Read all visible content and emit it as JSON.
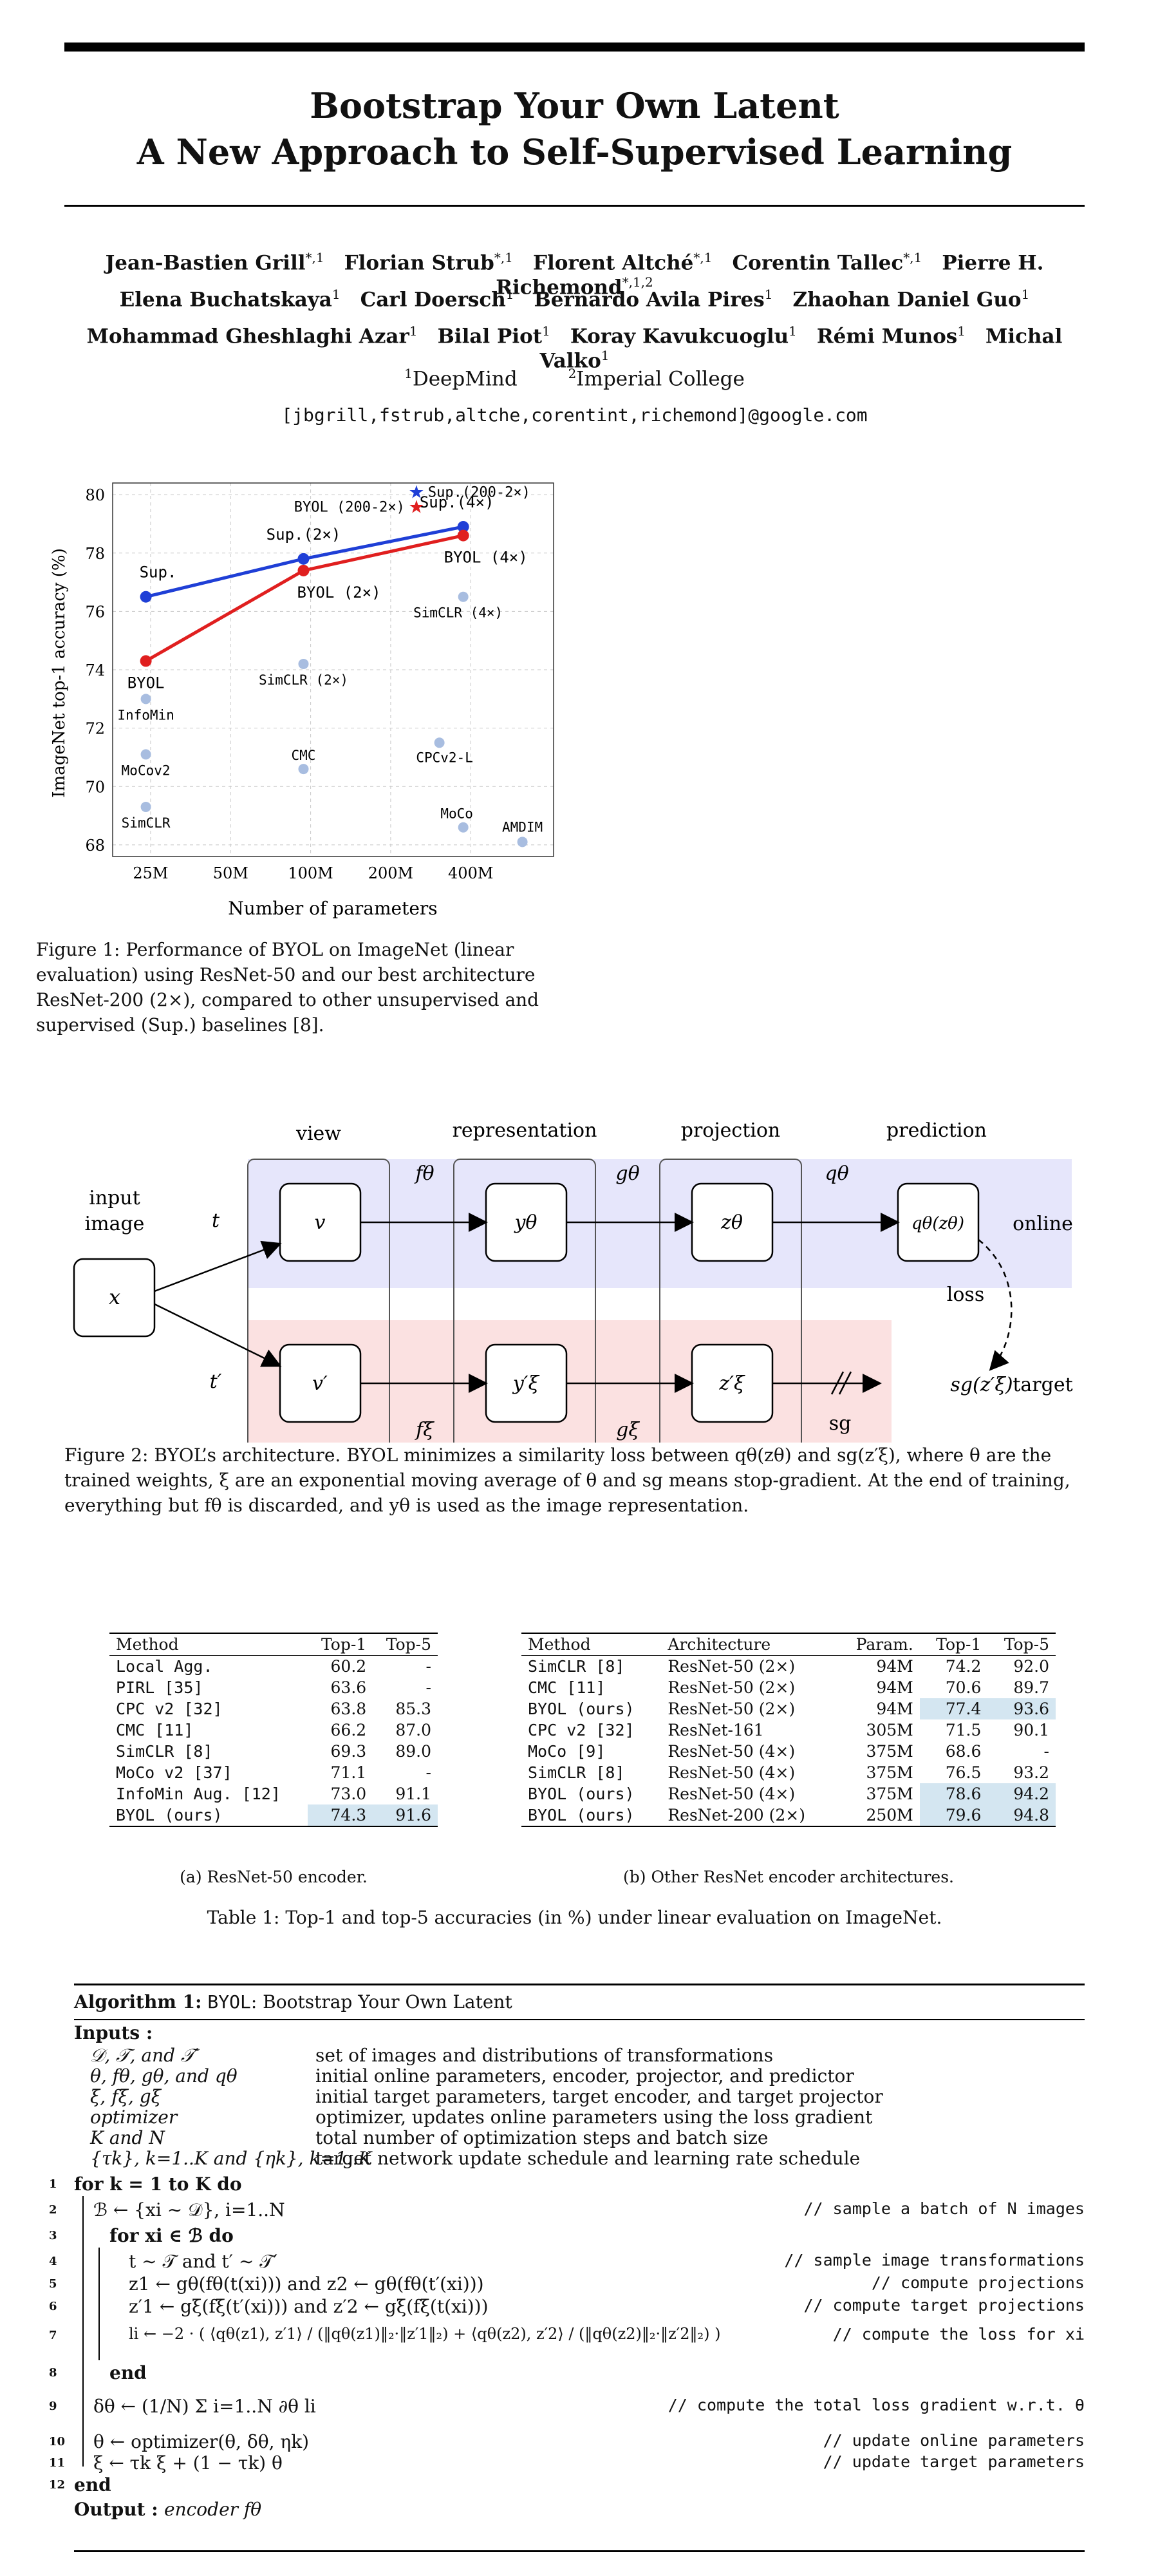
{
  "paper": {
    "title_line1": "Bootstrap Your Own Latent",
    "title_line2": "A New Approach to Self-Supervised Learning",
    "authors_row1": [
      {
        "name": "Jean-Bastien Grill",
        "sup": "*,1"
      },
      {
        "name": "Florian Strub",
        "sup": "*,1"
      },
      {
        "name": "Florent Altché",
        "sup": "*,1"
      },
      {
        "name": "Corentin Tallec",
        "sup": "*,1"
      },
      {
        "name": "Pierre H. Richemond",
        "sup": "*,1,2"
      }
    ],
    "authors_row2": [
      {
        "name": "Elena Buchatskaya",
        "sup": "1"
      },
      {
        "name": "Carl Doersch",
        "sup": "1"
      },
      {
        "name": "Bernardo Avila Pires",
        "sup": "1"
      },
      {
        "name": "Zhaohan Daniel Guo",
        "sup": "1"
      }
    ],
    "authors_row3": [
      {
        "name": "Mohammad Gheshlaghi Azar",
        "sup": "1"
      },
      {
        "name": "Bilal Piot",
        "sup": "1"
      },
      {
        "name": "Koray Kavukcuoglu",
        "sup": "1"
      },
      {
        "name": "Rémi Munos",
        "sup": "1"
      },
      {
        "name": "Michal Valko",
        "sup": "1"
      }
    ],
    "affiliations": [
      {
        "sup": "1",
        "name": "DeepMind"
      },
      {
        "sup": "2",
        "name": "Imperial College"
      }
    ],
    "email": "[jbgrill,fstrub,altche,corentint,richemond]@google.com"
  },
  "chart_data": {
    "type": "scatter",
    "xlabel": "Number of parameters",
    "ylabel": "ImageNet top-1 accuracy (%)",
    "x_scale": "log",
    "xticks": [
      "25M",
      "50M",
      "100M",
      "200M",
      "400M"
    ],
    "xtick_values": [
      25,
      50,
      100,
      200,
      400
    ],
    "yticks": [
      68,
      70,
      72,
      74,
      76,
      78,
      80
    ],
    "ylim": [
      67.6,
      80.4
    ],
    "xlim": [
      18,
      820
    ],
    "grid": true,
    "series": [
      {
        "name": "Sup.",
        "color": "#1f3fd6",
        "labels": [
          "Sup.",
          "Sup.(2×)",
          "Sup.(4×)"
        ],
        "x": [
          24,
          94,
          375
        ],
        "y": [
          76.5,
          77.8,
          78.9
        ]
      },
      {
        "name": "BYOL",
        "color": "#e01f1f",
        "labels": [
          "BYOL",
          "BYOL (2×)",
          "BYOL (4×)"
        ],
        "x": [
          24,
          94,
          375
        ],
        "y": [
          74.3,
          77.4,
          78.6
        ]
      }
    ],
    "stars": [
      {
        "label": "Sup.(200-2×)",
        "x": 250,
        "y": 80.1,
        "color": "#1f3fd6"
      },
      {
        "label": "BYOL (200-2×)",
        "x": 250,
        "y": 79.6,
        "color": "#e01f1f"
      }
    ],
    "others": {
      "color": "#a8bde0",
      "points": [
        {
          "label": "InfoMin",
          "x": 24,
          "y": 73.0
        },
        {
          "label": "MoCov2",
          "x": 24,
          "y": 71.1
        },
        {
          "label": "SimCLR",
          "x": 24,
          "y": 69.3
        },
        {
          "label": "SimCLR (2×)",
          "x": 94,
          "y": 74.2
        },
        {
          "label": "CMC",
          "x": 94,
          "y": 70.6
        },
        {
          "label": "SimCLR (4×)",
          "x": 375,
          "y": 76.5
        },
        {
          "label": "CPCv2-L",
          "x": 305,
          "y": 71.5
        },
        {
          "label": "MoCo",
          "x": 375,
          "y": 68.6
        },
        {
          "label": "AMDIM",
          "x": 626,
          "y": 68.1
        }
      ]
    }
  },
  "figure1": {
    "caption": "Figure 1: Performance of BYOL on ImageNet (linear evaluation) using ResNet-50 and our best architecture ResNet-200 (2×), compared to other unsupervised and supervised (Sup.) baselines [8]."
  },
  "figure2": {
    "labels": {
      "input_image": "input image",
      "view": "view",
      "representation": "representation",
      "projection": "projection",
      "prediction": "prediction",
      "online": "online",
      "target": "target",
      "loss": "loss",
      "sg": "sg",
      "x": "x",
      "t": "t",
      "t_prime": "t′",
      "v": "v",
      "v_prime": "v′",
      "y_theta": "yθ",
      "y_xi": "y′ξ",
      "z_theta": "zθ",
      "z_xi": "z′ξ",
      "q_theta_z": "qθ(zθ)",
      "sg_z": "sg(z′ξ)",
      "f_theta": "fθ",
      "g_theta": "gθ",
      "q_theta": "qθ",
      "f_xi": "fξ",
      "g_xi": "gξ"
    },
    "caption": "Figure 2: BYOL’s architecture. BYOL minimizes a similarity loss between qθ(zθ) and sg(z′ξ), where θ are the trained weights, ξ are an exponential moving average of θ and sg means stop-gradient. At the end of training, everything but fθ is discarded, and yθ is used as the image representation."
  },
  "table1": {
    "a": {
      "headers": [
        "Method",
        "Top-1",
        "Top-5"
      ],
      "rows": [
        [
          "Local Agg.",
          "60.2",
          "-"
        ],
        [
          "PIRL [35]",
          "63.6",
          "-"
        ],
        [
          "CPC v2 [32]",
          "63.8",
          "85.3"
        ],
        [
          "CMC [11]",
          "66.2",
          "87.0"
        ],
        [
          "SimCLR [8]",
          "69.3",
          "89.0"
        ],
        [
          "MoCo v2 [37]",
          "71.1",
          "-"
        ],
        [
          "InfoMin Aug. [12]",
          "73.0",
          "91.1"
        ],
        [
          "BYOL (ours)",
          "74.3",
          "91.6"
        ]
      ],
      "subcaption": "(a) ResNet-50 encoder."
    },
    "b": {
      "headers": [
        "Method",
        "Architecture",
        "Param.",
        "Top-1",
        "Top-5"
      ],
      "rows": [
        [
          "SimCLR [8]",
          "ResNet-50 (2×)",
          "94M",
          "74.2",
          "92.0"
        ],
        [
          "CMC [11]",
          "ResNet-50 (2×)",
          "94M",
          "70.6",
          "89.7"
        ],
        [
          "BYOL (ours)",
          "ResNet-50 (2×)",
          "94M",
          "77.4",
          "93.6"
        ],
        [
          "CPC v2 [32]",
          "ResNet-161",
          "305M",
          "71.5",
          "90.1"
        ],
        [
          "MoCo [9]",
          "ResNet-50 (4×)",
          "375M",
          "68.6",
          "-"
        ],
        [
          "SimCLR [8]",
          "ResNet-50 (4×)",
          "375M",
          "76.5",
          "93.2"
        ],
        [
          "BYOL (ours)",
          "ResNet-50 (4×)",
          "375M",
          "78.6",
          "94.2"
        ],
        [
          "BYOL (ours)",
          "ResNet-200 (2×)",
          "250M",
          "79.6",
          "94.8"
        ]
      ],
      "subcaption": "(b) Other ResNet encoder architectures."
    },
    "caption": "Table 1: Top-1 and top-5 accuracies (in %) under linear evaluation on ImageNet."
  },
  "algorithm": {
    "title_prefix": "Algorithm 1:",
    "title_name": "BYOL",
    "title_rest": ": Bootstrap Your Own Latent",
    "inputs_label": "Inputs :",
    "inputs": [
      [
        "𝒟, 𝒯, and 𝒯′",
        "set of images and distributions of transformations"
      ],
      [
        "θ, fθ, gθ, and qθ",
        "initial online parameters, encoder, projector, and predictor"
      ],
      [
        "ξ, fξ, gξ",
        "initial target parameters, target encoder, and target projector"
      ],
      [
        "optimizer",
        "optimizer, updates online parameters using the loss gradient"
      ],
      [
        "K and N",
        "total number of optimization steps and batch size"
      ],
      [
        "{τk}, k=1..K and {ηk}, k=1..K",
        "target network update schedule and learning rate schedule"
      ]
    ],
    "lines": [
      {
        "n": "1",
        "code": "for k = 1 to K do",
        "comment": ""
      },
      {
        "n": "2",
        "code": "ℬ ← {xi ∼ 𝒟}, i=1..N",
        "comment": "// sample a batch of N images"
      },
      {
        "n": "3",
        "code": "for xi ∈ ℬ do",
        "comment": ""
      },
      {
        "n": "4",
        "code": "t ∼ 𝒯 and t′ ∼ 𝒯′",
        "comment": "// sample image transformations"
      },
      {
        "n": "5",
        "code": "z1 ← gθ(fθ(t(xi))) and z2 ← gθ(fθ(t′(xi)))",
        "comment": "// compute projections"
      },
      {
        "n": "6",
        "code": "z′1 ← gξ(fξ(t′(xi))) and z′2 ← gξ(fξ(t(xi)))",
        "comment": "// compute target projections"
      },
      {
        "n": "7",
        "code": "li ← −2 · ( ⟨qθ(z1), z′1⟩ / (‖qθ(z1)‖₂·‖z′1‖₂) + ⟨qθ(z2), z′2⟩ / (‖qθ(z2)‖₂·‖z′2‖₂) )",
        "comment": "// compute the loss for xi"
      },
      {
        "n": "8",
        "code": "end",
        "comment": ""
      },
      {
        "n": "9",
        "code": "δθ ← (1/N) Σ i=1..N ∂θ li",
        "comment": "// compute the total loss gradient w.r.t. θ"
      },
      {
        "n": "10",
        "code": "θ ← optimizer(θ, δθ, ηk)",
        "comment": "// update online parameters"
      },
      {
        "n": "11",
        "code": "ξ ← τk ξ + (1 − τk) θ",
        "comment": "// update target parameters"
      },
      {
        "n": "12",
        "code": "end",
        "comment": ""
      }
    ],
    "output_label": "Output :",
    "output_value": "encoder fθ"
  }
}
